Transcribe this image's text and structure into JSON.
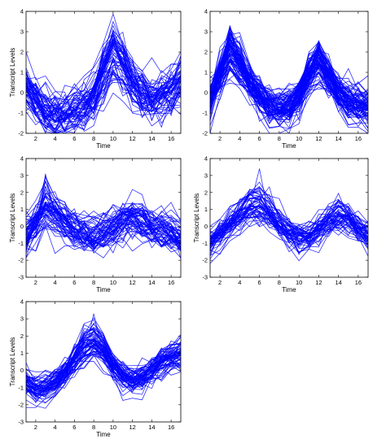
{
  "chart_data": [
    {
      "type": "line",
      "panel": "top-left",
      "xlabel": "Time",
      "ylabel": "Transcript Levels",
      "xlim": [
        1,
        17
      ],
      "ylim": [
        -2,
        4
      ],
      "xticks": [
        2,
        4,
        6,
        8,
        10,
        12,
        14,
        16
      ],
      "yticks": [
        -2,
        -1,
        0,
        1,
        2,
        3,
        4
      ],
      "grid": false,
      "x": [
        1,
        2,
        3,
        4,
        5,
        6,
        7,
        8,
        9,
        10,
        11,
        12,
        13,
        14,
        15,
        16,
        17
      ],
      "profile": [
        0.4,
        -0.3,
        -0.9,
        -1.1,
        -1.0,
        -0.8,
        -0.6,
        -0.1,
        1.2,
        2.2,
        1.6,
        0.6,
        0.0,
        -0.3,
        -0.1,
        0.3,
        0.7
      ],
      "trace_count": 60,
      "spread": 0.7,
      "peak_values": [
        3.1,
        2.8
      ],
      "color": "#0000ff"
    },
    {
      "type": "line",
      "panel": "top-right",
      "xlabel": "Time",
      "ylabel": "",
      "xlim": [
        1,
        17
      ],
      "ylim": [
        -2,
        4
      ],
      "xticks": [
        2,
        4,
        6,
        8,
        10,
        12,
        14,
        16
      ],
      "yticks": [
        -2,
        -1,
        0,
        1,
        2,
        3,
        4
      ],
      "grid": false,
      "x": [
        1,
        2,
        3,
        4,
        5,
        6,
        7,
        8,
        9,
        10,
        11,
        12,
        13,
        14,
        15,
        16,
        17
      ],
      "profile": [
        -0.3,
        0.9,
        2.2,
        1.5,
        0.6,
        -0.1,
        -0.6,
        -0.8,
        -0.7,
        -0.1,
        1.0,
        1.6,
        0.9,
        0.0,
        -0.4,
        -0.6,
        -0.7
      ],
      "trace_count": 90,
      "spread": 0.55,
      "peak_values": [
        3.2,
        2.6
      ],
      "color": "#0000ff"
    },
    {
      "type": "line",
      "panel": "middle-left",
      "xlabel": "Time",
      "ylabel": "Transcript Levels",
      "xlim": [
        1,
        17
      ],
      "ylim": [
        -3,
        4
      ],
      "xticks": [
        2,
        4,
        6,
        8,
        10,
        12,
        14,
        16
      ],
      "yticks": [
        -3,
        -2,
        -1,
        0,
        1,
        2,
        3,
        4
      ],
      "grid": false,
      "x": [
        1,
        2,
        3,
        4,
        5,
        6,
        7,
        8,
        9,
        10,
        11,
        12,
        13,
        14,
        15,
        16,
        17
      ],
      "profile": [
        -0.6,
        0.3,
        1.5,
        1.1,
        0.4,
        -0.1,
        -0.4,
        -0.6,
        -0.4,
        0.0,
        0.5,
        0.7,
        0.5,
        0.1,
        -0.2,
        -0.5,
        -0.7
      ],
      "trace_count": 60,
      "spread": 0.7,
      "peak_values": [
        3.1,
        2.7
      ],
      "color": "#0000ff"
    },
    {
      "type": "line",
      "panel": "middle-right",
      "xlabel": "Time",
      "ylabel": "Transcript Levels",
      "xlim": [
        1,
        17
      ],
      "ylim": [
        -3,
        4
      ],
      "xticks": [
        2,
        4,
        6,
        8,
        10,
        12,
        14,
        16
      ],
      "yticks": [
        -3,
        -2,
        -1,
        0,
        1,
        2,
        3,
        4
      ],
      "grid": false,
      "x": [
        1,
        2,
        3,
        4,
        5,
        6,
        7,
        8,
        9,
        10,
        11,
        12,
        13,
        14,
        15,
        16,
        17
      ],
      "profile": [
        -1.0,
        -0.6,
        0.1,
        0.8,
        1.3,
        1.4,
        0.9,
        0.2,
        -0.4,
        -0.8,
        -0.7,
        -0.2,
        0.4,
        0.8,
        0.5,
        -0.1,
        -0.6
      ],
      "trace_count": 55,
      "spread": 0.55,
      "peak_values": [
        3.4,
        2.3
      ],
      "color": "#0000ff"
    },
    {
      "type": "line",
      "panel": "bottom-left",
      "xlabel": "Time",
      "ylabel": "Transcript Levels",
      "xlim": [
        1,
        17
      ],
      "ylim": [
        -3,
        4
      ],
      "xticks": [
        2,
        4,
        6,
        8,
        10,
        12,
        14,
        16
      ],
      "yticks": [
        -3,
        -2,
        -1,
        0,
        1,
        2,
        3,
        4
      ],
      "grid": false,
      "x": [
        1,
        2,
        3,
        4,
        5,
        6,
        7,
        8,
        9,
        10,
        11,
        12,
        13,
        14,
        15,
        16,
        17
      ],
      "profile": [
        -0.8,
        -1.2,
        -1.1,
        -0.8,
        -0.2,
        0.6,
        1.4,
        1.8,
        1.2,
        0.2,
        -0.5,
        -0.7,
        -0.5,
        0.0,
        0.5,
        0.8,
        1.0
      ],
      "trace_count": 65,
      "spread": 0.45,
      "peak_values": [
        3.3,
        2.3
      ],
      "color": "#0000ff"
    }
  ]
}
